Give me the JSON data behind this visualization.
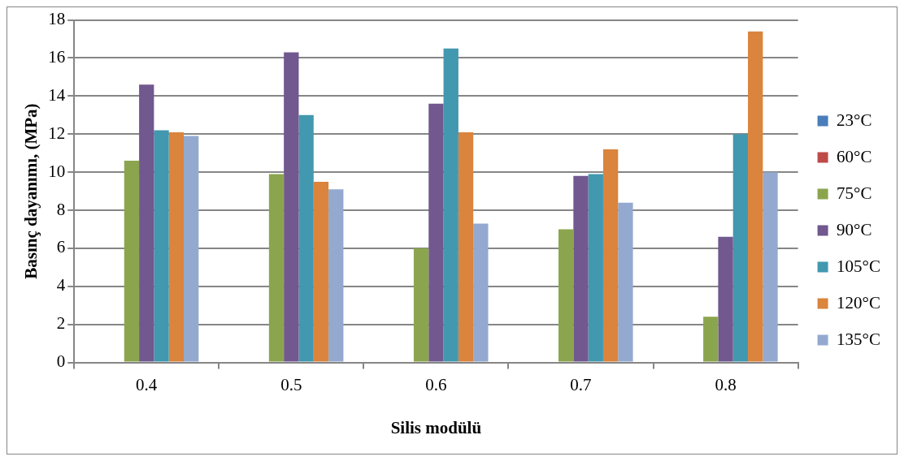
{
  "chart_data": {
    "type": "bar",
    "xlabel": "Silis modülü",
    "ylabel": "Basınç dayanımı, (MPa)",
    "categories": [
      "0.4",
      "0.5",
      "0.6",
      "0.7",
      "0.8"
    ],
    "series": [
      {
        "name": "23°C",
        "color": "#4a7ebb",
        "values": [
          null,
          null,
          null,
          null,
          null
        ]
      },
      {
        "name": "60°C",
        "color": "#be4b48",
        "values": [
          null,
          null,
          null,
          null,
          null
        ]
      },
      {
        "name": "75°C",
        "color": "#8ba54e",
        "values": [
          10.6,
          9.9,
          6.0,
          7.0,
          2.4
        ]
      },
      {
        "name": "90°C",
        "color": "#71588f",
        "values": [
          14.6,
          16.3,
          13.6,
          9.8,
          6.6
        ]
      },
      {
        "name": "105°C",
        "color": "#4298af",
        "values": [
          12.2,
          13.0,
          16.5,
          9.9,
          12.0
        ]
      },
      {
        "name": "120°C",
        "color": "#db843d",
        "values": [
          12.1,
          9.5,
          12.1,
          11.2,
          17.4
        ]
      },
      {
        "name": "135°C",
        "color": "#93a9cf",
        "values": [
          11.9,
          9.1,
          7.3,
          8.4,
          10.0
        ]
      }
    ],
    "ylim": [
      0,
      18
    ],
    "yticks": [
      0,
      2,
      4,
      6,
      8,
      10,
      12,
      14,
      16,
      18
    ],
    "grid": "y",
    "legend": "right"
  }
}
